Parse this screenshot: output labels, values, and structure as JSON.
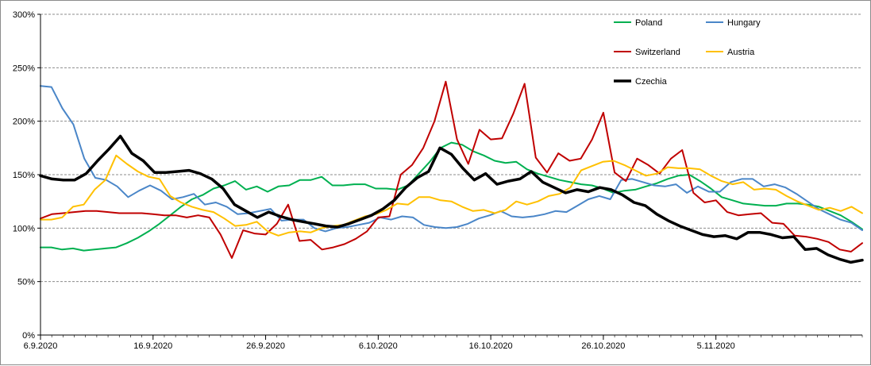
{
  "chart_data": {
    "type": "line",
    "title": "",
    "xlabel": "",
    "ylabel": "",
    "x_tick_labels": [
      "6.9.2020",
      "16.9.2020",
      "26.9.2020",
      "6.10.2020",
      "16.10.2020",
      "26.10.2020",
      "5.11.2020"
    ],
    "y_tick_labels": [
      "0%",
      "50%",
      "100%",
      "150%",
      "200%",
      "250%",
      "300%"
    ],
    "ylim": [
      0,
      300
    ],
    "y_unit": "%",
    "x_start": "6.9.2020",
    "x_end": "18.11.2020",
    "grid": "horizontal dashed",
    "legend_position": "top-right",
    "series": [
      {
        "name": "Poland",
        "color": "#00b050",
        "width": 2,
        "values": [
          82,
          82,
          80,
          81,
          79,
          80,
          81,
          82,
          86,
          91,
          97,
          104,
          112,
          120,
          127,
          131,
          137,
          140,
          144,
          136,
          139,
          134,
          139,
          140,
          145,
          145,
          148,
          140,
          140,
          141,
          141,
          137,
          137,
          136,
          140,
          151,
          162,
          175,
          180,
          178,
          172,
          168,
          163,
          161,
          162,
          155,
          151,
          148,
          145,
          143,
          141,
          140,
          137,
          133,
          135,
          136,
          139,
          142,
          146,
          149,
          150,
          144,
          137,
          129,
          126,
          123,
          122,
          121,
          121,
          123,
          123,
          122,
          120,
          116,
          112,
          106,
          99
        ]
      },
      {
        "name": "Hungary",
        "color": "#4a86c8",
        "width": 2,
        "values": [
          233,
          232,
          212,
          197,
          165,
          147,
          145,
          139,
          129,
          135,
          140,
          135,
          127,
          129,
          132,
          122,
          124,
          120,
          113,
          114,
          116,
          118,
          107,
          108,
          108,
          100,
          97,
          100,
          101,
          103,
          105,
          110,
          108,
          111,
          110,
          103,
          101,
          100,
          101,
          104,
          109,
          112,
          116,
          111,
          110,
          111,
          113,
          116,
          115,
          121,
          127,
          130,
          127,
          145,
          146,
          143,
          140,
          139,
          141,
          133,
          139,
          134,
          134,
          143,
          146,
          146,
          139,
          141,
          138,
          132,
          125,
          118,
          113,
          108,
          105,
          98
        ]
      },
      {
        "name": "Switzerland",
        "color": "#c00000",
        "width": 2,
        "values": [
          109,
          113,
          114,
          115,
          116,
          116,
          115,
          114,
          114,
          114,
          113,
          112,
          112,
          110,
          112,
          110,
          94,
          72,
          98,
          95,
          94,
          104,
          122,
          88,
          89,
          80,
          82,
          85,
          90,
          97,
          110,
          111,
          150,
          159,
          175,
          200,
          237,
          183,
          160,
          192,
          183,
          184,
          207,
          235,
          166,
          152,
          170,
          163,
          165,
          183,
          208,
          152,
          144,
          165,
          159,
          151,
          165,
          173,
          133,
          124,
          126,
          115,
          112,
          113,
          114,
          105,
          104,
          93,
          92,
          90,
          87,
          80,
          78,
          86
        ]
      },
      {
        "name": "Austria",
        "color": "#ffc000",
        "width": 2,
        "values": [
          108,
          108,
          110,
          120,
          122,
          136,
          145,
          168,
          160,
          153,
          148,
          146,
          130,
          124,
          120,
          117,
          115,
          109,
          102,
          103,
          106,
          97,
          93,
          96,
          97,
          96,
          100,
          102,
          103,
          107,
          111,
          113,
          117,
          123,
          122,
          129,
          129,
          126,
          125,
          120,
          116,
          117,
          114,
          117,
          125,
          122,
          125,
          130,
          132,
          138,
          154,
          158,
          162,
          163,
          159,
          154,
          149,
          151,
          157,
          156,
          156,
          155,
          149,
          144,
          141,
          143,
          136,
          137,
          136,
          130,
          125,
          121,
          117,
          119,
          116,
          120,
          114
        ]
      },
      {
        "name": "Czechia",
        "color": "#000000",
        "width": 3.5,
        "values": [
          149,
          146,
          145,
          145,
          151,
          163,
          174,
          186,
          170,
          163,
          152,
          152,
          153,
          154,
          151,
          146,
          137,
          122,
          116,
          110,
          115,
          111,
          108,
          106,
          104,
          102,
          101,
          104,
          108,
          112,
          118,
          126,
          138,
          147,
          153,
          175,
          169,
          156,
          145,
          151,
          141,
          144,
          146,
          153,
          143,
          138,
          133,
          136,
          134,
          138,
          136,
          131,
          124,
          121,
          113,
          107,
          102,
          98,
          94,
          92,
          93,
          90,
          96,
          96,
          94,
          91,
          92,
          80,
          81,
          75,
          71,
          68,
          70
        ]
      }
    ]
  }
}
